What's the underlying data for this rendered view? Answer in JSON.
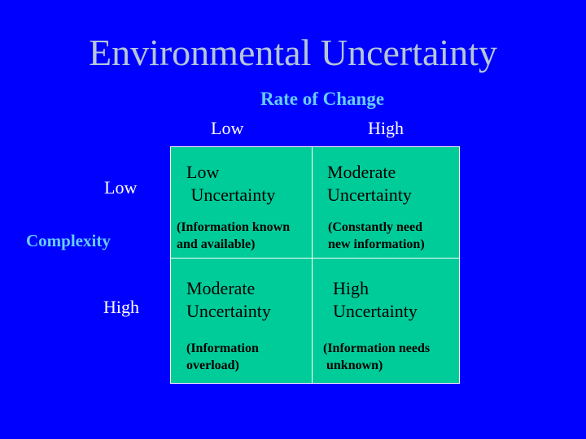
{
  "title": "Environmental Uncertainty",
  "axes": {
    "rate_of_change": {
      "label": "Rate of Change",
      "low": "Low",
      "high": "High"
    },
    "complexity": {
      "label": "Complexity",
      "low": "Low",
      "high": "High"
    }
  },
  "cells": {
    "low_low": {
      "heading": "Low\n Uncertainty",
      "detail": "(Information known\nand available)"
    },
    "high_rate_low_complexity": {
      "heading": "Moderate\nUncertainty",
      "detail": "(Constantly need\nnew information)"
    },
    "low_rate_high_complexity": {
      "heading": "Moderate\nUncertainty",
      "detail": "(Information\noverload)"
    },
    "high_high": {
      "heading": "High\nUncertainty",
      "detail": "(Information needs\n unknown)"
    }
  },
  "colors": {
    "background": "#0000ff",
    "title": "#b4c6d8",
    "axis_label": "#66ccff",
    "grid_fill": "#00cc99",
    "grid_border": "#ffffff"
  }
}
